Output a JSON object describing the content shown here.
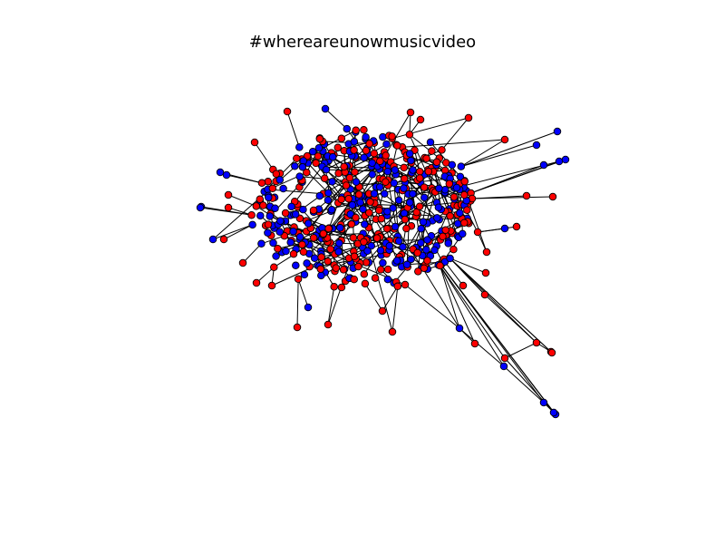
{
  "title": "#whereareunowmusicvideo",
  "colors": {
    "background": "#ffffff",
    "node_group_a": "#ff0000",
    "node_group_b": "#0000ff",
    "edge": "#000000"
  },
  "graph": {
    "type": "network",
    "layout": "force-directed",
    "node_colors": [
      "#ff0000",
      "#0000ff"
    ]
  }
}
